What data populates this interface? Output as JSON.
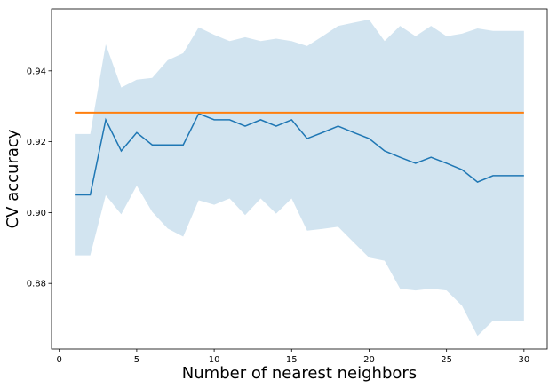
{
  "chart_data": {
    "type": "line",
    "title": "",
    "xlabel": "Number of nearest neighbors",
    "ylabel": "CV accuracy",
    "xlim": [
      -0.5,
      31.5
    ],
    "ylim": [
      0.8615,
      0.9575
    ],
    "x_ticks": [
      0,
      5,
      10,
      15,
      20,
      25,
      30
    ],
    "y_ticks": [
      0.88,
      0.9,
      0.92,
      0.94
    ],
    "x_tick_labels": [
      "0",
      "5",
      "10",
      "15",
      "20",
      "25",
      "30"
    ],
    "y_tick_labels": [
      "0.88",
      "0.90",
      "0.92",
      "0.94"
    ],
    "grid": false,
    "x": [
      1,
      2,
      3,
      4,
      5,
      6,
      7,
      8,
      9,
      10,
      11,
      12,
      13,
      14,
      15,
      16,
      17,
      18,
      19,
      20,
      21,
      22,
      23,
      24,
      25,
      26,
      27,
      28,
      29,
      30
    ],
    "series": [
      {
        "type": "line",
        "color": "#1f77b4",
        "values": [
          0.905,
          0.905,
          0.9262,
          0.9174,
          0.9226,
          0.9191,
          0.9191,
          0.9191,
          0.9279,
          0.9262,
          0.9262,
          0.9244,
          0.9262,
          0.9244,
          0.9262,
          0.9209,
          0.9226,
          0.9244,
          0.9226,
          0.9209,
          0.9174,
          0.9156,
          0.9139,
          0.9156,
          0.9139,
          0.9121,
          0.9086,
          0.9104,
          0.9104,
          0.9104
        ]
      },
      {
        "type": "line",
        "color": "#ff7f0e",
        "values": [
          0.9282,
          0.9282,
          0.9282,
          0.9282,
          0.9282,
          0.9282,
          0.9282,
          0.9282,
          0.9282,
          0.9282,
          0.9282,
          0.9282,
          0.9282,
          0.9282,
          0.9282,
          0.9282,
          0.9282,
          0.9282,
          0.9282,
          0.9282,
          0.9282,
          0.9282,
          0.9282,
          0.9282,
          0.9282,
          0.9282,
          0.9282,
          0.9282,
          0.9282,
          0.9282
        ]
      }
    ],
    "band": {
      "color": "#1f77b4",
      "opacity": 0.2,
      "upper": [
        0.9222,
        0.9222,
        0.9475,
        0.9353,
        0.9375,
        0.938,
        0.943,
        0.945,
        0.9523,
        0.9502,
        0.9484,
        0.9495,
        0.9484,
        0.9491,
        0.9484,
        0.947,
        0.9498,
        0.9527,
        0.9536,
        0.9545,
        0.9484,
        0.9527,
        0.9498,
        0.9527,
        0.9498,
        0.9505,
        0.952,
        0.9513,
        0.9513,
        0.9513
      ],
      "lower": [
        0.8879,
        0.8879,
        0.9049,
        0.8995,
        0.9076,
        0.9002,
        0.8955,
        0.8932,
        0.9035,
        0.9022,
        0.904,
        0.8993,
        0.904,
        0.8997,
        0.904,
        0.8949,
        0.8954,
        0.896,
        0.8916,
        0.8873,
        0.8864,
        0.8785,
        0.878,
        0.8785,
        0.878,
        0.8737,
        0.8652,
        0.8695,
        0.8695,
        0.8695
      ]
    }
  }
}
